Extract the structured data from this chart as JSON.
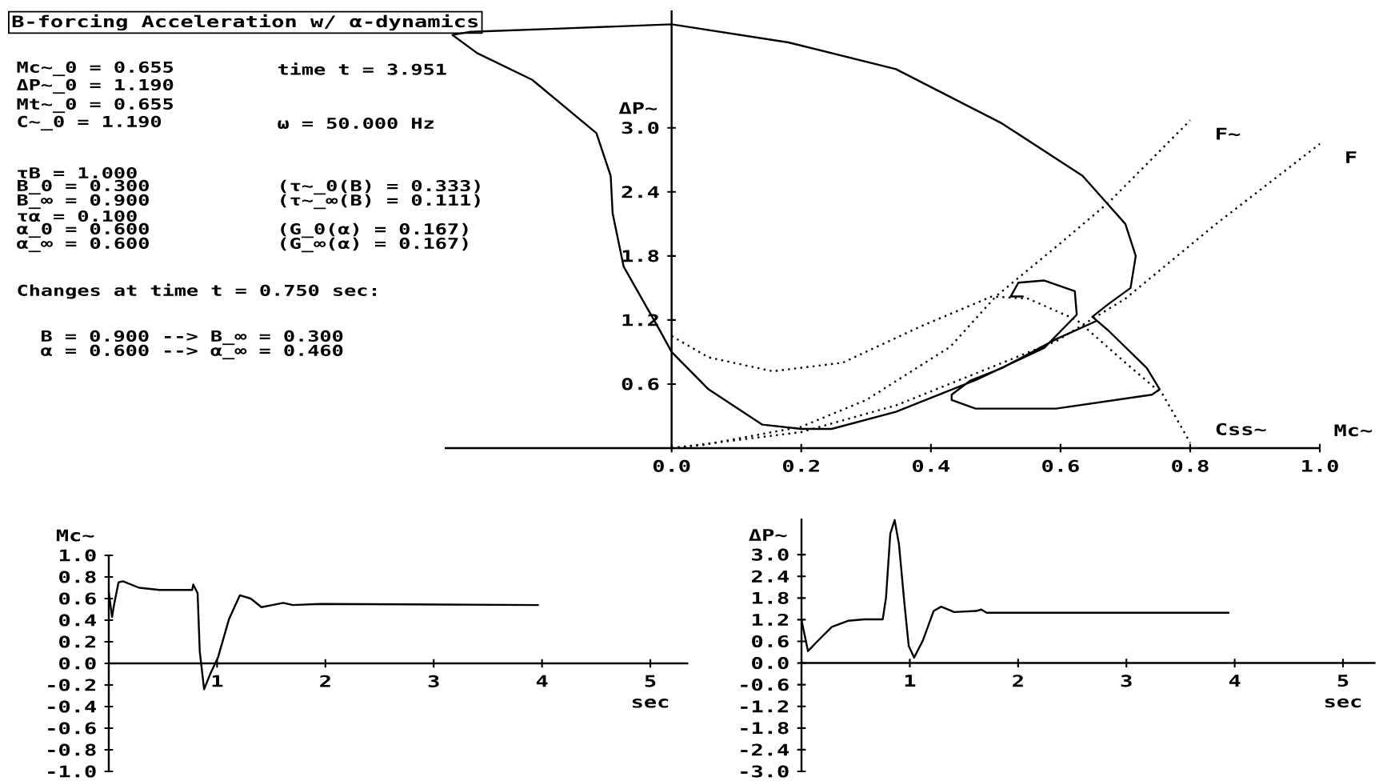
{
  "chart_data": [
    {
      "type": "line",
      "title": "B-forcing Acceleration w/ α-dynamics",
      "xlabel": "Mc~",
      "ylabel": "ΔP~",
      "annotations": [
        "Mc~_0 = 0.655",
        "time t = 3.951",
        "ΔP~_0 = 1.190",
        "Mt~_0 = 0.655",
        "C~_0 = 1.190",
        "ω = 50.000 Hz",
        "τB = 1.000",
        "B_0 = 0.300",
        "(τ~_0(B) = 0.333)",
        "B_∞ = 0.900",
        "(τ~_∞(B) = 0.111)",
        "τα = 0.100",
        "α_0 = 0.600",
        "(G_0(α) = 0.167)",
        "α_∞ = 0.600",
        "(G_∞(α) = 0.167)",
        "Changes at time t = 0.750 sec:",
        "B = 0.900 --> B_∞ = 0.300",
        "α = 0.600 --> α_∞ = 0.460"
      ],
      "xlim": [
        -0.35,
        1.0
      ],
      "ylim": [
        0,
        4.1
      ],
      "xticks": [
        {
          "value": 0,
          "label": "0.0"
        },
        {
          "value": 0.2,
          "label": "0.2"
        },
        {
          "value": 0.4,
          "label": "0.4"
        },
        {
          "value": 0.6,
          "label": "0.6"
        },
        {
          "value": 0.8,
          "label": "0.8"
        },
        {
          "value": 1.0,
          "label": "1.0"
        }
      ],
      "yticks": [
        {
          "value": 0.6,
          "label": "0.6"
        },
        {
          "value": 1.2,
          "label": "1.2"
        },
        {
          "value": 1.8,
          "label": "1.8"
        },
        {
          "value": 2.4,
          "label": "2.4"
        },
        {
          "value": 3.0,
          "label": "3.0"
        }
      ],
      "series": [
        {
          "color": "#000000",
          "line_style": "solid",
          "x": [
            0.655,
            0.593,
            0.51,
            0.46,
            0.432,
            0.432,
            0.469,
            0.593,
            0.741,
            0.753,
            0.733,
            0.674,
            0.649,
            0.674,
            0.708,
            0.716,
            0.7,
            0.634,
            0.51,
            0.346,
            0.18,
            0.0,
            -0.17,
            -0.31,
            -0.338,
            -0.3,
            -0.215,
            -0.116,
            -0.094,
            -0.091,
            -0.074,
            -0.017,
            0.0,
            0.057,
            0.14,
            0.2,
            0.247,
            0.346,
            0.47,
            0.575,
            0.625,
            0.622,
            0.575,
            0.535,
            0.523,
            0.543
          ],
          "values": [
            1.19,
            1.02,
            0.75,
            0.63,
            0.5,
            0.45,
            0.37,
            0.37,
            0.5,
            0.55,
            0.75,
            1.1,
            1.23,
            1.35,
            1.5,
            1.8,
            2.1,
            2.55,
            3.04,
            3.55,
            3.8,
            3.97,
            3.93,
            3.9,
            3.87,
            3.7,
            3.45,
            2.95,
            2.55,
            2.2,
            1.7,
            1.09,
            0.9,
            0.55,
            0.22,
            0.18,
            0.18,
            0.34,
            0.64,
            0.94,
            1.25,
            1.47,
            1.57,
            1.55,
            1.42,
            1.42
          ]
        },
        {
          "name": "F~",
          "color": "#000000",
          "line_style": "dotted",
          "x": [
            0,
            0.049,
            0.2,
            0.3,
            0.43,
            0.5,
            0.6,
            0.674,
            0.8
          ],
          "values": [
            0,
            0.03,
            0.2,
            0.45,
            0.95,
            1.42,
            1.92,
            2.3,
            3.07
          ]
        },
        {
          "name": "F",
          "color": "#000000",
          "line_style": "dotted",
          "x": [
            0,
            0.2,
            0.346,
            0.593,
            0.7,
            0.84,
            1.0
          ],
          "values": [
            0,
            0.15,
            0.4,
            1.0,
            1.4,
            2.1,
            2.85
          ]
        },
        {
          "name": "Css~",
          "color": "#000000",
          "line_style": "dotted",
          "x": [
            0,
            0.057,
            0.156,
            0.264,
            0.388,
            0.494,
            0.55,
            0.625,
            0.7,
            0.758,
            0.8
          ],
          "values": [
            1.05,
            0.85,
            0.72,
            0.8,
            1.15,
            1.42,
            1.4,
            1.2,
            0.8,
            0.5,
            0.05
          ]
        }
      ]
    },
    {
      "type": "line",
      "xlabel": "sec",
      "ylabel": "Mc~",
      "xlim": [
        0,
        5.35
      ],
      "ylim": [
        -1.0,
        1.0
      ],
      "xticks": [
        1,
        2,
        3,
        4,
        5
      ],
      "yticks": [
        {
          "value": -1.0,
          "label": "-1.0"
        },
        {
          "value": -0.8,
          "label": "-0.8"
        },
        {
          "value": -0.6,
          "label": "-0.6"
        },
        {
          "value": -0.4,
          "label": "-0.4"
        },
        {
          "value": -0.2,
          "label": "-0.2"
        },
        {
          "value": 0,
          "label": "0.0"
        },
        {
          "value": 0.2,
          "label": "0.2"
        },
        {
          "value": 0.4,
          "label": "0.4"
        },
        {
          "value": 0.6,
          "label": "0.6"
        },
        {
          "value": 0.8,
          "label": "0.8"
        },
        {
          "value": 1.0,
          "label": "1.0"
        }
      ],
      "series": [
        {
          "color": "#000000",
          "line_style": "solid",
          "x": [
            0,
            0.03,
            0.05,
            0.09,
            0.13,
            0.28,
            0.47,
            0.77,
            0.78,
            0.82,
            0.84,
            0.88,
            0.94,
            1.01,
            1.11,
            1.21,
            1.31,
            1.41,
            1.51,
            1.61,
            1.7,
            1.95,
            3.97
          ],
          "values": [
            0.66,
            0.43,
            0.55,
            0.75,
            0.76,
            0.7,
            0.68,
            0.68,
            0.73,
            0.65,
            0.11,
            -0.24,
            -0.09,
            0.06,
            0.41,
            0.63,
            0.6,
            0.52,
            0.54,
            0.56,
            0.54,
            0.55,
            0.54
          ]
        }
      ]
    },
    {
      "type": "line",
      "xlabel": "sec",
      "ylabel": "ΔP~",
      "xlim": [
        0,
        5.3
      ],
      "ylim": [
        -3.0,
        4.0
      ],
      "xticks": [
        1,
        2,
        3,
        4,
        5
      ],
      "yticks": [
        {
          "value": -3.0,
          "label": "-3.0"
        },
        {
          "value": -2.4,
          "label": "-2.4"
        },
        {
          "value": -1.8,
          "label": "-1.8"
        },
        {
          "value": -1.2,
          "label": "-1.2"
        },
        {
          "value": -0.6,
          "label": "-0.6"
        },
        {
          "value": 0,
          "label": "0.0"
        },
        {
          "value": 0.6,
          "label": "0.6"
        },
        {
          "value": 1.2,
          "label": "1.2"
        },
        {
          "value": 1.8,
          "label": "1.8"
        },
        {
          "value": 2.4,
          "label": "2.4"
        },
        {
          "value": 3.0,
          "label": "3.0"
        }
      ],
      "series": [
        {
          "color": "#000000",
          "line_style": "solid",
          "x": [
            0,
            0.06,
            0.13,
            0.28,
            0.43,
            0.58,
            0.75,
            0.78,
            0.82,
            0.86,
            0.9,
            0.95,
            0.99,
            1.04,
            1.12,
            1.22,
            1.29,
            1.41,
            1.61,
            1.66,
            1.71,
            1.9,
            3.95
          ],
          "values": [
            1.19,
            0.33,
            0.55,
            1.0,
            1.17,
            1.21,
            1.21,
            1.8,
            3.58,
            3.96,
            3.29,
            1.66,
            0.47,
            0.15,
            0.62,
            1.44,
            1.56,
            1.41,
            1.44,
            1.48,
            1.39,
            1.39,
            1.39
          ]
        }
      ]
    }
  ]
}
